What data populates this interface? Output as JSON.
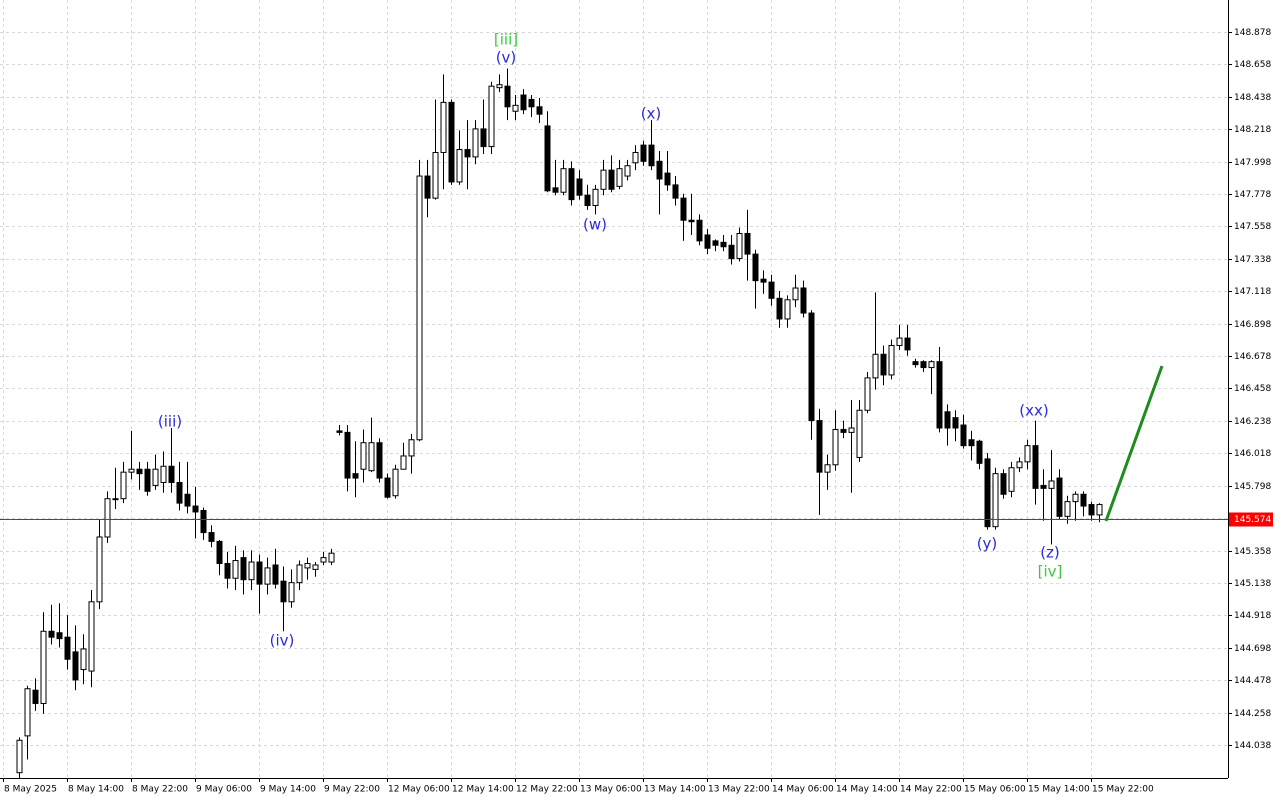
{
  "chart_data": {
    "type": "candlestick",
    "categories": [
      "8 May 2025",
      null,
      null,
      null,
      null,
      null,
      null,
      null,
      "8 May 14:00",
      null,
      null,
      null,
      null,
      null,
      null,
      null,
      "8 May 22:00",
      null,
      null,
      null,
      null,
      null,
      null,
      null,
      "9 May 06:00",
      null,
      null,
      null,
      null,
      null,
      null,
      null,
      "9 May 14:00",
      null,
      null,
      null,
      null,
      null,
      null,
      null,
      "9 May 22:00",
      null,
      null,
      null,
      null,
      null,
      null,
      null,
      "12 May 06:00",
      null,
      null,
      null,
      null,
      null,
      null,
      null,
      "12 May 14:00",
      null,
      null,
      null,
      null,
      null,
      null,
      null,
      "12 May 22:00",
      null,
      null,
      null,
      null,
      null,
      null,
      null,
      "13 May 06:00",
      null,
      null,
      null,
      null,
      null,
      null,
      null,
      "13 May 14:00",
      null,
      null,
      null,
      null,
      null,
      null,
      null,
      "13 May 22:00",
      null,
      null,
      null,
      null,
      null,
      null,
      null,
      "14 May 06:00",
      null,
      null,
      null,
      null,
      null,
      null,
      null,
      "14 May 14:00",
      null,
      null,
      null,
      null,
      null,
      null,
      null,
      "14 May 22:00",
      null,
      null,
      null,
      null,
      null,
      null,
      null,
      "15 May 06:00",
      null,
      null,
      null,
      null,
      null,
      null,
      null,
      "15 May 14:00",
      null,
      null,
      null,
      null,
      null,
      null,
      null,
      "15 May 22:00",
      null
    ],
    "open": [
      null,
      null,
      143.85,
      144.1,
      144.41,
      144.32,
      144.81,
      144.8,
      144.77,
      144.67,
      144.55,
      144.54,
      145.01,
      145.45,
      145.71,
      145.71,
      145.89,
      145.91,
      145.91,
      145.8,
      145.82,
      145.93,
      145.82,
      145.74,
      145.66,
      145.63,
      145.48,
      145.42,
      145.27,
      145.17,
      145.31,
      145.16,
      145.28,
      145.13,
      145.26,
      145.15,
      145.01,
      145.14,
      145.24,
      145.23,
      145.28,
      145.28,
      146.17,
      146.16,
      145.88,
      145.91,
      145.9,
      146.09,
      145.85,
      145.73,
      145.91,
      146.0,
      146.11,
      147.9,
      147.75,
      148.06,
      148.4,
      147.86,
      148.08,
      148.03,
      148.22,
      148.1,
      148.5,
      148.51,
      148.34,
      148.45,
      148.42,
      148.37,
      148.24,
      147.82,
      147.79,
      147.95,
      147.88,
      147.77,
      147.7,
      147.81,
      147.94,
      147.83,
      147.9,
      147.99,
      148.11,
      148.11,
      148.0,
      147.92,
      147.84,
      147.75,
      147.6,
      147.6,
      147.5,
      147.46,
      147.45,
      147.43,
      147.34,
      147.51,
      147.37,
      147.2,
      147.18,
      147.07,
      146.93,
      147.06,
      147.14,
      146.97,
      146.24,
      145.89,
      145.94,
      146.18,
      146.16,
      145.99,
      146.31,
      146.53,
      146.69,
      146.55,
      146.75,
      146.8,
      146.64,
      146.64,
      146.6,
      146.64,
      146.3,
      146.26,
      146.21,
      146.11,
      146.1,
      145.98,
      145.52,
      145.88,
      145.76,
      145.92,
      145.96,
      146.07,
      145.8,
      145.78,
      145.85,
      145.59,
      145.69,
      145.74,
      145.67,
      145.6
    ],
    "high": [
      null,
      null,
      144.09,
      144.44,
      144.49,
      144.94,
      144.99,
      145.0,
      144.92,
      144.85,
      144.79,
      145.09,
      145.57,
      145.76,
      145.92,
      145.96,
      146.17,
      145.96,
      145.96,
      146.01,
      146.03,
      146.19,
      145.96,
      145.96,
      145.79,
      145.65,
      145.53,
      145.43,
      145.35,
      145.39,
      145.36,
      145.36,
      145.33,
      145.31,
      145.37,
      145.25,
      145.23,
      145.29,
      145.31,
      145.28,
      145.35,
      145.37,
      146.21,
      146.21,
      146.1,
      146.18,
      146.26,
      146.12,
      145.88,
      145.94,
      146.09,
      146.15,
      148.01,
      148.01,
      148.42,
      148.59,
      148.42,
      148.21,
      148.28,
      148.28,
      148.42,
      148.54,
      148.59,
      148.63,
      148.45,
      148.49,
      148.45,
      148.43,
      148.34,
      148.01,
      148.01,
      148.0,
      147.94,
      147.84,
      147.84,
      148.01,
      148.04,
      148.01,
      148.01,
      148.11,
      148.14,
      148.28,
      148.07,
      148.07,
      147.9,
      147.78,
      147.78,
      147.64,
      147.54,
      147.47,
      147.5,
      147.5,
      147.55,
      147.67,
      147.4,
      147.26,
      147.23,
      147.12,
      147.09,
      147.23,
      147.19,
      146.99,
      146.32,
      146.01,
      146.31,
      146.24,
      146.38,
      146.38,
      146.57,
      147.11,
      146.75,
      146.79,
      146.89,
      146.89,
      146.66,
      146.65,
      146.65,
      146.74,
      146.35,
      146.31,
      146.28,
      146.17,
      146.11,
      146.02,
      145.92,
      145.91,
      145.96,
      145.99,
      146.11,
      146.24,
      145.91,
      146.04,
      145.91,
      145.73,
      145.76,
      145.76,
      145.69,
      145.68
    ],
    "low": [
      null,
      null,
      143.81,
      143.94,
      144.27,
      144.25,
      144.72,
      144.7,
      144.55,
      144.41,
      144.45,
      144.43,
      144.96,
      145.41,
      145.64,
      145.68,
      145.84,
      145.77,
      145.73,
      145.77,
      145.75,
      145.75,
      145.63,
      145.61,
      145.44,
      145.43,
      145.38,
      145.19,
      145.1,
      145.09,
      145.06,
      145.09,
      144.93,
      145.06,
      145.1,
      144.81,
      144.97,
      145.09,
      145.16,
      145.18,
      145.26,
      145.26,
      146.14,
      145.76,
      145.72,
      145.82,
      145.89,
      145.82,
      145.71,
      145.71,
      145.91,
      145.88,
      146.1,
      147.62,
      147.74,
      147.81,
      147.84,
      147.84,
      147.81,
      147.98,
      148.05,
      148.05,
      148.47,
      148.28,
      148.28,
      148.32,
      148.3,
      148.26,
      147.79,
      147.77,
      147.77,
      147.7,
      147.74,
      147.67,
      147.64,
      147.77,
      147.79,
      147.81,
      147.87,
      147.94,
      147.97,
      147.94,
      147.64,
      147.8,
      147.7,
      147.46,
      147.5,
      147.43,
      147.37,
      147.39,
      147.39,
      147.3,
      147.32,
      147.19,
      147.0,
      147.1,
      147.02,
      146.87,
      146.87,
      147.01,
      146.94,
      146.11,
      145.6,
      145.77,
      145.9,
      146.12,
      145.75,
      145.96,
      146.29,
      146.45,
      146.48,
      146.52,
      146.72,
      146.68,
      146.6,
      146.57,
      146.42,
      146.16,
      146.07,
      146.1,
      146.05,
      145.97,
      145.91,
      145.5,
      145.5,
      145.71,
      145.72,
      145.89,
      145.91,
      145.67,
      145.56,
      145.4,
      145.57,
      145.54,
      145.56,
      145.59,
      145.56,
      145.55
    ],
    "close": [
      null,
      null,
      144.07,
      144.42,
      144.32,
      144.81,
      144.77,
      144.76,
      144.62,
      144.48,
      144.69,
      145.01,
      145.45,
      145.71,
      145.705,
      145.89,
      145.91,
      145.88,
      145.76,
      145.91,
      145.93,
      145.82,
      145.68,
      145.66,
      145.62,
      145.48,
      145.42,
      145.27,
      145.17,
      145.29,
      145.16,
      145.28,
      145.13,
      145.24,
      145.13,
      145.01,
      145.14,
      145.26,
      145.27,
      145.26,
      145.31,
      145.34,
      146.16,
      145.85,
      145.85,
      146.09,
      146.09,
      145.85,
      145.72,
      145.91,
      146.0,
      146.11,
      147.9,
      147.75,
      148.06,
      148.4,
      147.86,
      148.08,
      148.03,
      148.22,
      148.1,
      148.51,
      148.52,
      148.37,
      148.38,
      148.35,
      148.37,
      148.32,
      147.8,
      147.79,
      147.95,
      147.74,
      147.77,
      147.7,
      147.81,
      147.94,
      147.81,
      147.95,
      147.97,
      148.06,
      148.0,
      147.97,
      147.88,
      147.84,
      147.75,
      147.6,
      147.59,
      147.46,
      147.41,
      147.43,
      147.42,
      147.34,
      147.51,
      147.37,
      147.19,
      147.18,
      147.07,
      146.93,
      147.06,
      147.14,
      146.97,
      146.24,
      145.89,
      145.94,
      146.18,
      146.16,
      146.19,
      146.31,
      146.53,
      146.69,
      146.55,
      146.75,
      146.8,
      146.72,
      146.62,
      146.6,
      146.64,
      146.19,
      146.19,
      146.19,
      146.07,
      146.07,
      145.95,
      145.52,
      145.88,
      145.74,
      145.92,
      145.96,
      146.07,
      145.78,
      145.78,
      145.83,
      145.59,
      145.69,
      145.74,
      145.66,
      145.6,
      145.67
    ],
    "up_color": "#ffffff",
    "down_color": "#000000",
    "ylim": [
      143.814,
      149.095
    ],
    "yticks": [
      148.878,
      148.658,
      148.438,
      148.218,
      147.998,
      147.778,
      147.558,
      147.338,
      147.118,
      146.898,
      146.678,
      146.458,
      146.238,
      146.018,
      145.798,
      145.578,
      145.358,
      145.138,
      144.918,
      144.698,
      144.478,
      144.258,
      144.038
    ],
    "grid": true,
    "current_price": 145.574,
    "price_line_color": "#ff0000",
    "annotations": [
      "[iii]",
      "(v)",
      "(iii)",
      "(iv)",
      "(w)",
      "(x)",
      "(xx)",
      "(y)",
      "(z)",
      "[iv]"
    ]
  }
}
